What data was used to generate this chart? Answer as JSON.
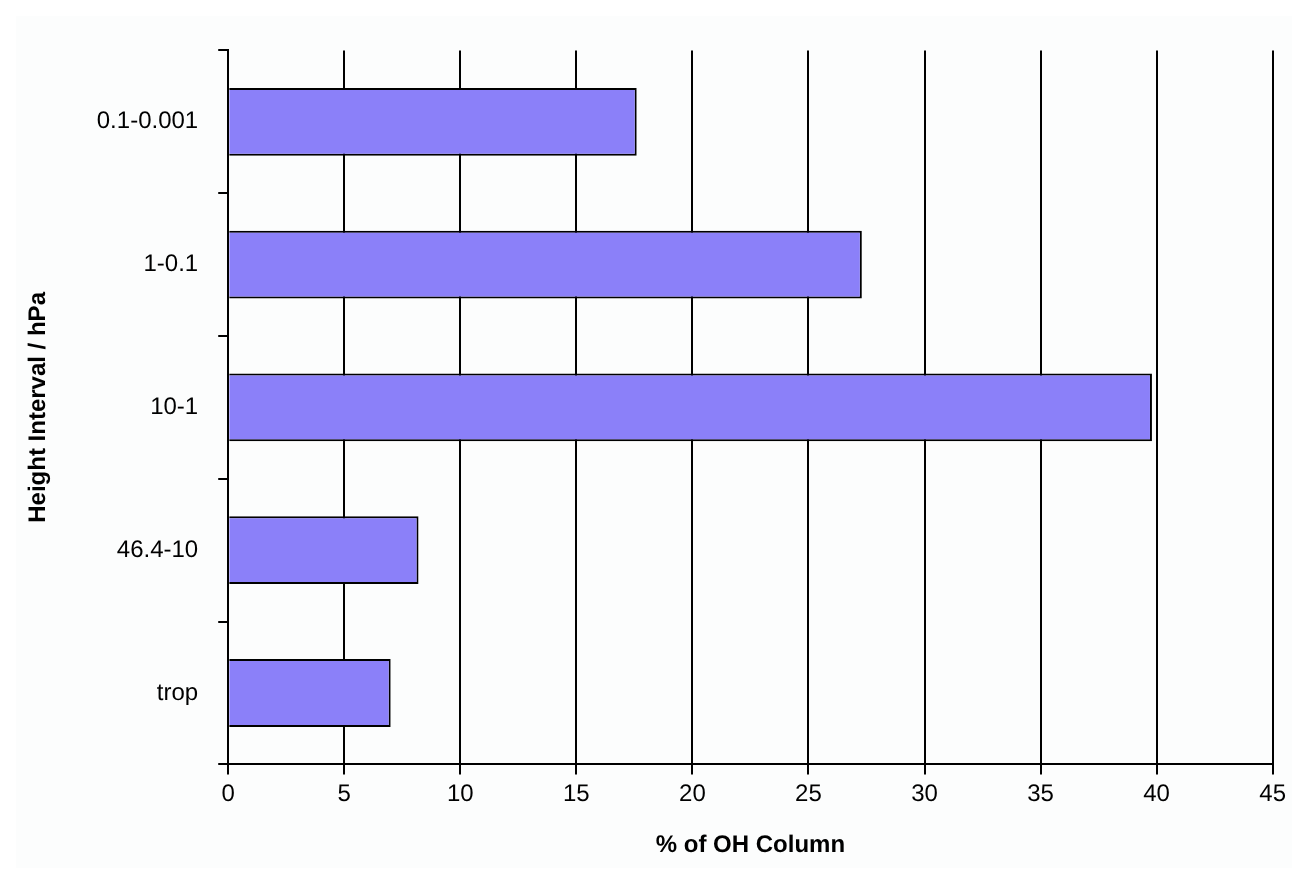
{
  "chart_data": {
    "type": "bar",
    "orientation": "horizontal",
    "xlabel": "% of OH Column",
    "ylabel": "Height Interval / hPa",
    "categories": [
      "0.1-0.001",
      "1-0.1",
      "10-1",
      "46.4-10",
      "trop"
    ],
    "values": [
      17.6,
      27.3,
      39.8,
      8.2,
      7.0
    ],
    "color": "#8b80f9",
    "xlim": [
      0,
      45
    ],
    "xticks": [
      0,
      5,
      10,
      15,
      20,
      25,
      30,
      35,
      40,
      45
    ],
    "grid": "x",
    "legend": false
  }
}
